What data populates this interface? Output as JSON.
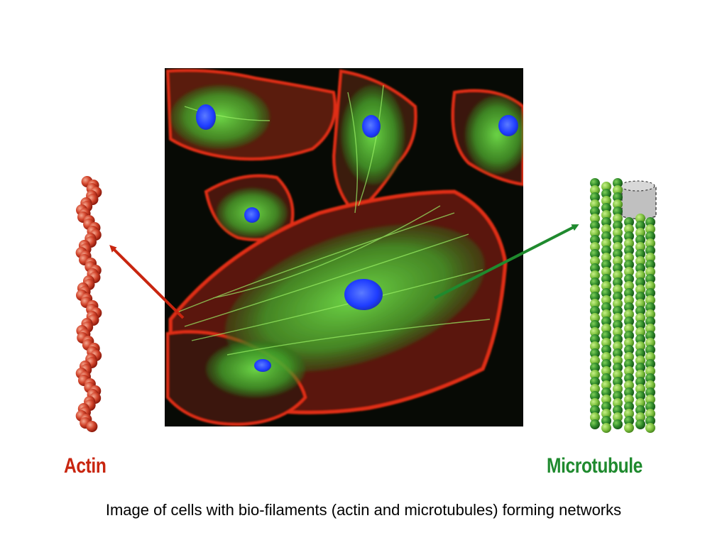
{
  "labels": {
    "actin": "Actin",
    "microtubule": "Microtubule"
  },
  "caption": "Image of cells with bio-filaments (actin and microtubules) forming networks",
  "colors": {
    "actin": "#c8250f",
    "microtubule": "#1f8a2e",
    "background": "#ffffff",
    "micrograph_bg": "#070a05",
    "nucleus": "#1e3cff"
  }
}
